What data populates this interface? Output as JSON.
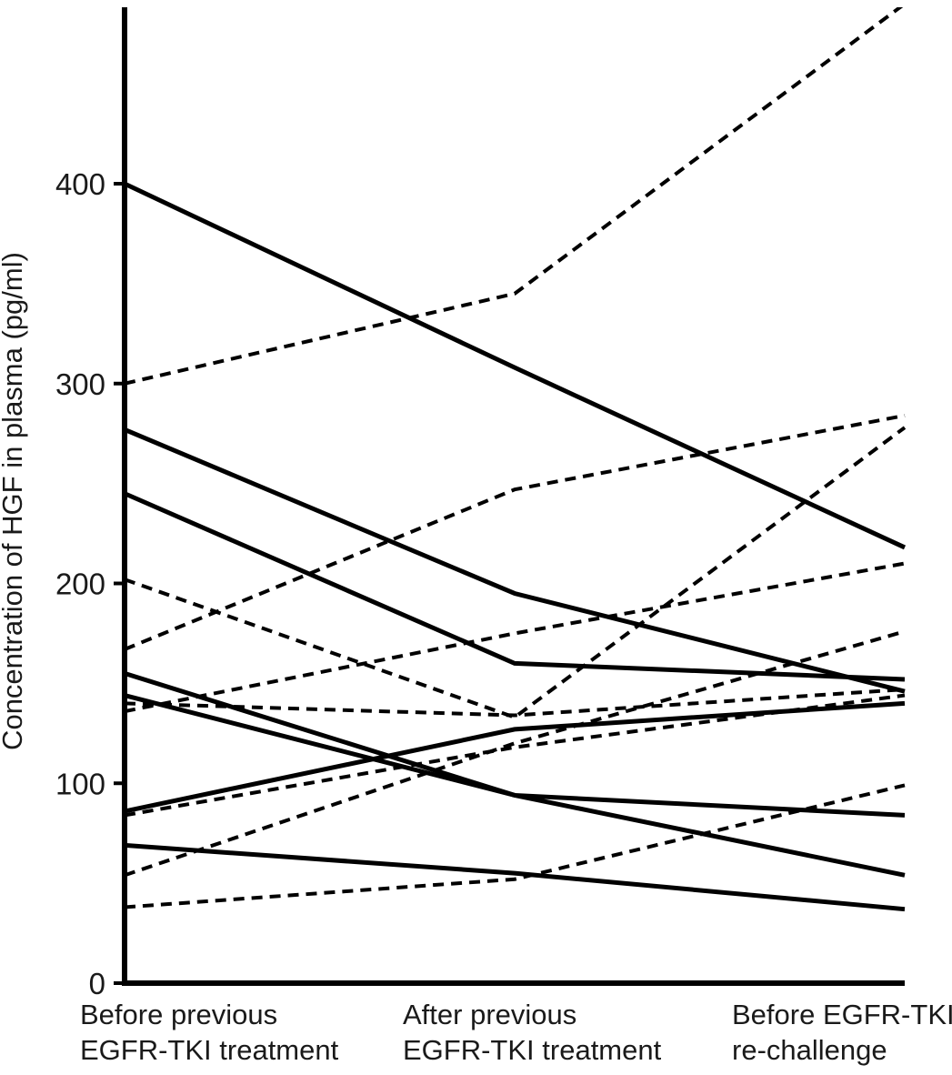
{
  "chart_data": {
    "type": "line",
    "title": "",
    "ylabel": "Concentration of HGF in plasma (pg/ml)",
    "xlabel": "",
    "yticks": [
      0,
      100,
      200,
      300,
      400
    ],
    "ylim": [
      0,
      489
    ],
    "grid": false,
    "legend": "none",
    "line_styles_meaning": "solid and dashed patient trajectories, all black",
    "colors": {
      "line": "#000000",
      "background": "#ffffff",
      "text": "#1a1a1a"
    },
    "x_categories": [
      {
        "line1": "Before previous",
        "line2": "EGFR-TKI treatment"
      },
      {
        "line1": "After previous",
        "line2": "EGFR-TKI treatment"
      },
      {
        "line1": "Before EGFR-TKI",
        "line2": "re-challenge"
      }
    ],
    "series": [
      {
        "name": "solid-1",
        "style": "solid",
        "values": [
          400,
          308,
          218
        ]
      },
      {
        "name": "solid-2",
        "style": "solid",
        "values": [
          277,
          195,
          146
        ]
      },
      {
        "name": "solid-3",
        "style": "solid",
        "values": [
          245,
          160,
          152
        ]
      },
      {
        "name": "solid-4",
        "style": "solid",
        "values": [
          155,
          94,
          54
        ]
      },
      {
        "name": "solid-5",
        "style": "solid",
        "values": [
          144,
          94,
          84
        ]
      },
      {
        "name": "solid-6",
        "style": "solid",
        "values": [
          86,
          127,
          140
        ]
      },
      {
        "name": "solid-7",
        "style": "solid",
        "values": [
          69,
          55,
          37
        ]
      },
      {
        "name": "dashed-1",
        "style": "dashed",
        "values": [
          300,
          345,
          490
        ],
        "note": "final segment exits top of plot (value off-scale, clipped)"
      },
      {
        "name": "dashed-2",
        "style": "dashed",
        "values": [
          202,
          133,
          278
        ]
      },
      {
        "name": "dashed-3",
        "style": "dashed",
        "values": [
          167,
          247,
          284
        ]
      },
      {
        "name": "dashed-4",
        "style": "dashed",
        "values": [
          140,
          134,
          147
        ]
      },
      {
        "name": "dashed-5",
        "style": "dashed",
        "values": [
          136,
          175,
          210
        ]
      },
      {
        "name": "dashed-6",
        "style": "dashed",
        "values": [
          84,
          118,
          144
        ]
      },
      {
        "name": "dashed-7",
        "style": "dashed",
        "values": [
          54,
          120,
          176
        ]
      },
      {
        "name": "dashed-8",
        "style": "dashed",
        "values": [
          38,
          52,
          99
        ]
      }
    ]
  }
}
